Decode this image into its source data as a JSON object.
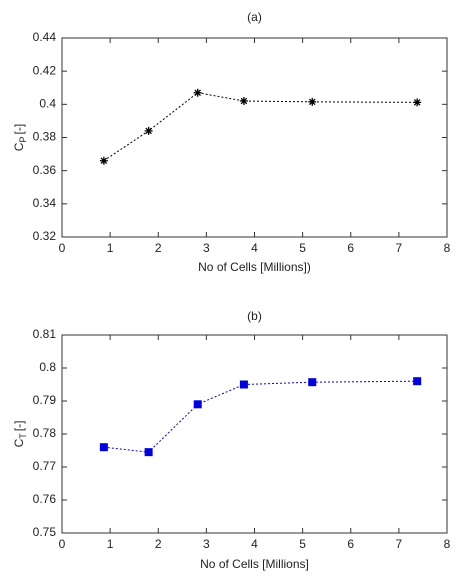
{
  "chart_data": [
    {
      "type": "line",
      "title": "(a)",
      "xlabel": "No of Cells [Millions])",
      "ylabel": [
        "C",
        "P",
        "[-]"
      ],
      "x": [
        0.87,
        1.8,
        2.82,
        3.78,
        5.2,
        7.38
      ],
      "series": [
        {
          "color": "#000000",
          "marker": "asterisk",
          "values": [
            0.366,
            0.384,
            0.407,
            0.402,
            0.4015,
            0.4012
          ]
        }
      ],
      "xlim": [
        0,
        8
      ],
      "xticks": [
        0,
        1,
        2,
        3,
        4,
        5,
        6,
        7,
        8
      ],
      "ylim": [
        0.32,
        0.44
      ],
      "yticks": [
        0.32,
        0.34,
        0.36,
        0.38,
        0.4,
        0.42,
        0.44
      ],
      "linestyle": "dotted"
    },
    {
      "type": "line",
      "title": "(b)",
      "xlabel": "No of Cells [Millions]",
      "ylabel": [
        "C",
        "T",
        "[-]"
      ],
      "x": [
        0.87,
        1.8,
        2.82,
        3.78,
        5.2,
        7.38
      ],
      "series": [
        {
          "color": "#0000e0",
          "marker": "square",
          "values": [
            0.776,
            0.7745,
            0.789,
            0.795,
            0.7957,
            0.796
          ]
        }
      ],
      "xlim": [
        0,
        8
      ],
      "xticks": [
        0,
        1,
        2,
        3,
        4,
        5,
        6,
        7,
        8
      ],
      "ylim": [
        0.75,
        0.81
      ],
      "yticks": [
        0.75,
        0.76,
        0.77,
        0.78,
        0.79,
        0.8,
        0.81
      ],
      "linestyle": "dotted"
    }
  ]
}
